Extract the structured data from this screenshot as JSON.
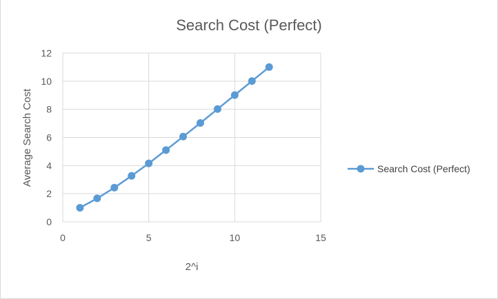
{
  "chart_data": {
    "type": "scatter",
    "title": "Search Cost (Perfect)",
    "xlabel": "2^i",
    "ylabel": "Average Search Cost",
    "xlim": [
      0,
      15
    ],
    "ylim": [
      0,
      12
    ],
    "x_ticks": [
      "0",
      "5",
      "10",
      "15"
    ],
    "y_ticks": [
      "0",
      "2",
      "4",
      "6",
      "8",
      "10",
      "12"
    ],
    "grid": true,
    "legend_position": "right",
    "series": [
      {
        "name": "Search Cost (Perfect)",
        "color": "#5b9bd5",
        "x": [
          1,
          2,
          3,
          4,
          5,
          6,
          7,
          8,
          9,
          10,
          11,
          12
        ],
        "y": [
          1,
          1.67,
          2.43,
          3.27,
          4.16,
          5.1,
          6.06,
          7.03,
          8.02,
          9.01,
          10.01,
          11.0
        ]
      }
    ]
  }
}
